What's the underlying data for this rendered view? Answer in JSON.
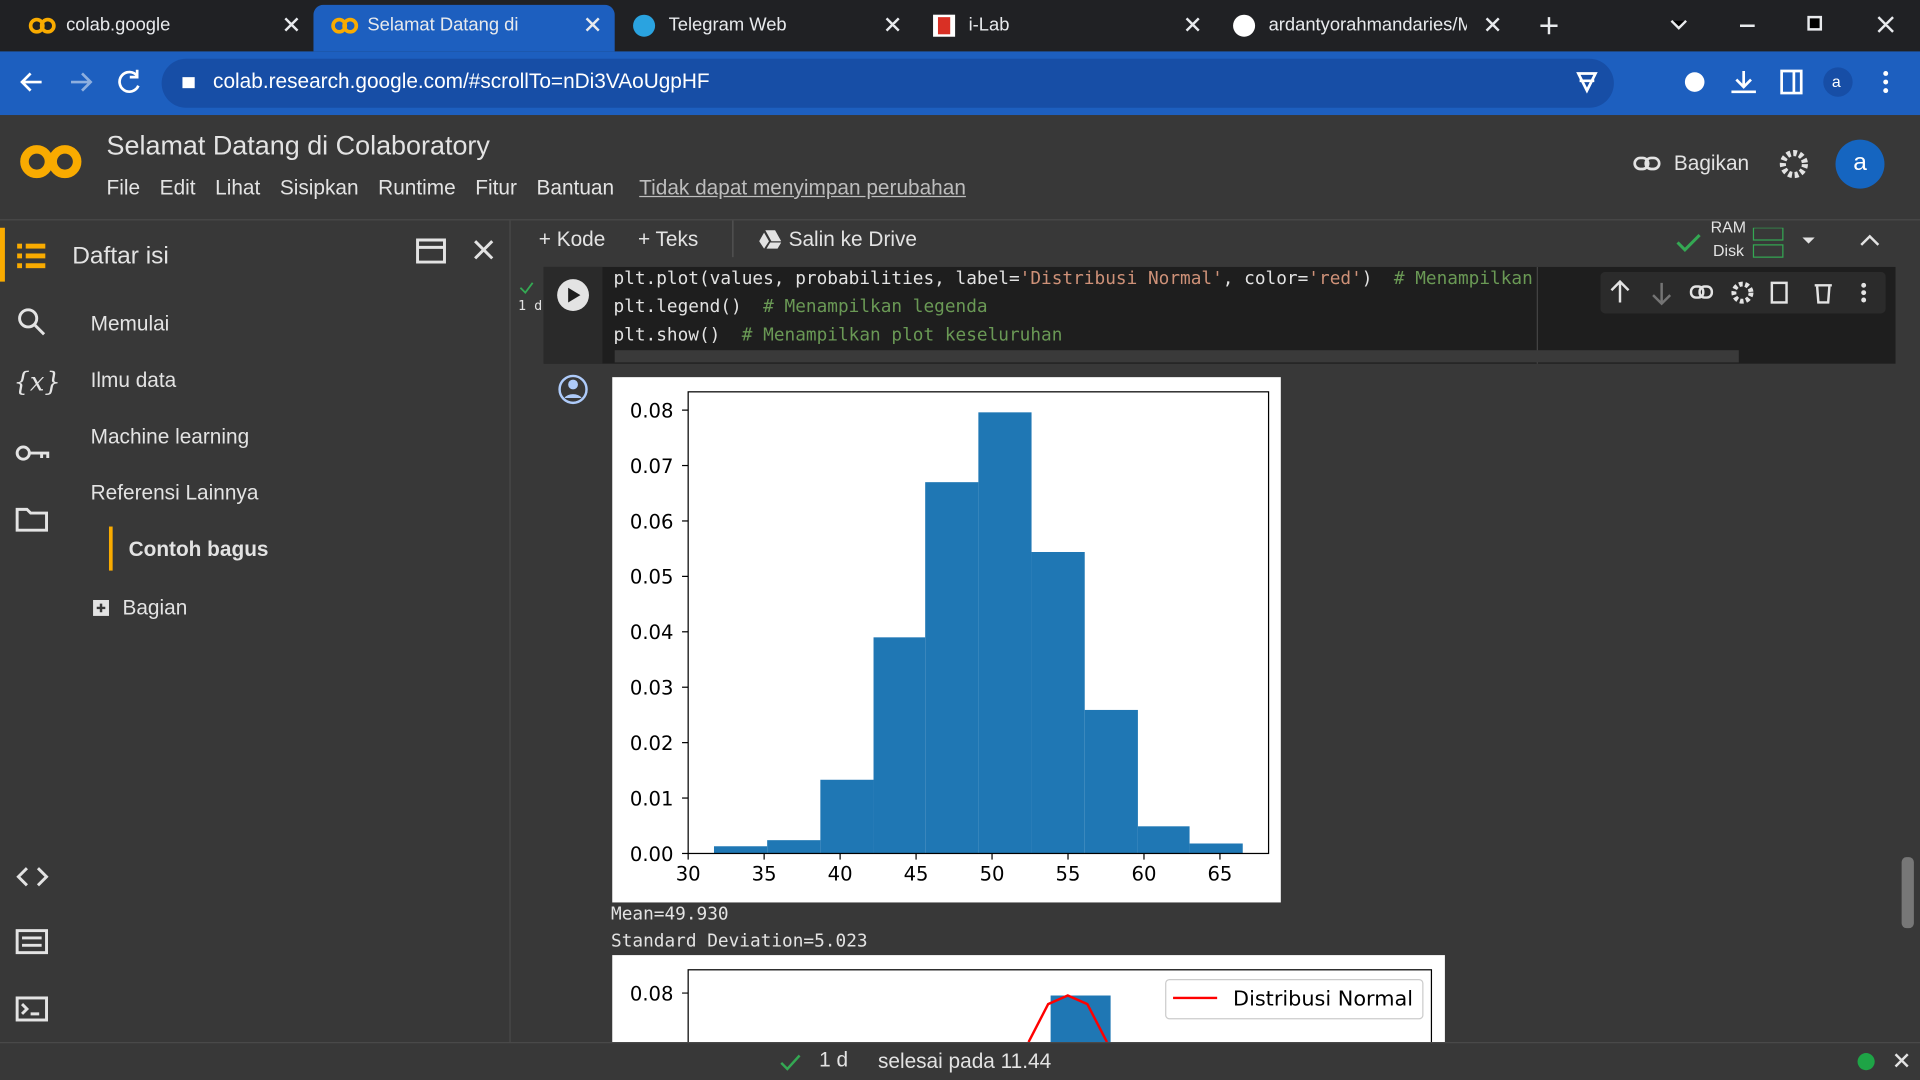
{
  "browser": {
    "tabs": [
      "colab.google",
      "Selamat Datang di Colab",
      "Telegram Web",
      "i-Lab",
      "ardantyorahmandaries/M"
    ],
    "url": "colab.research.google.com/#scrollTo=nDi3VAoUgpHF",
    "profile": "a"
  },
  "header": {
    "title": "Selamat Datang di Colaboratory",
    "menu": [
      "File",
      "Edit",
      "Lihat",
      "Sisipkan",
      "Runtime",
      "Fitur",
      "Bantuan"
    ],
    "warning": "Tidak dapat menyimpan perubahan",
    "share": "Bagikan",
    "avatar": "a"
  },
  "toolbar": {
    "code": "+ Kode",
    "text": "+ Teks",
    "drive": "Salin ke Drive",
    "ram": "RAM",
    "disk": "Disk"
  },
  "sidebar": {
    "title": "Daftar isi",
    "var_icon": "{x}",
    "items": [
      "Memulai",
      "Ilmu data",
      "Machine learning",
      "Referensi Lainnya"
    ],
    "sub_item": "Contoh bagus",
    "section": "Bagian"
  },
  "cell": {
    "exec_time": "1 d",
    "code": [
      [
        "plt.plot(values, probabilities, label=",
        "'Distribusi Normal'",
        ", color=",
        "'red'",
        ")  ",
        "# Menampilkan"
      ],
      [
        "plt.legend()  ",
        "# Menampilkan legenda"
      ],
      [
        "plt.show()  ",
        "# Menampilkan plot keseluruhan"
      ]
    ],
    "output": [
      "Mean=49.930",
      "Standard Deviation=5.023"
    ]
  },
  "chart_data": [
    {
      "type": "histogram",
      "color": "#1f77b4",
      "bins": [
        31.7,
        35.2,
        38.7,
        42.2,
        45.6,
        49.1,
        52.6,
        56.1,
        59.6,
        63.0,
        66.5
      ],
      "values": [
        0.0013,
        0.0024,
        0.0133,
        0.039,
        0.067,
        0.0796,
        0.0544,
        0.0259,
        0.0049,
        0.0018
      ],
      "xlim": [
        30,
        68.2
      ],
      "ylim": [
        0,
        0.0833
      ],
      "xticks": [
        30,
        35,
        40,
        45,
        50,
        55,
        60,
        65
      ],
      "yticks": [
        {
          "value": 0,
          "label": "0.00"
        },
        {
          "value": 0.01,
          "label": "0.01"
        },
        {
          "value": 0.02,
          "label": "0.02"
        },
        {
          "value": 0.03,
          "label": "0.03"
        },
        {
          "value": 0.04,
          "label": "0.04"
        },
        {
          "value": 0.05,
          "label": "0.05"
        },
        {
          "value": 0.06,
          "label": "0.06"
        },
        {
          "value": 0.07,
          "label": "0.07"
        },
        {
          "value": 0.08,
          "label": "0.08"
        }
      ]
    },
    {
      "type": "histogram",
      "yticks": [
        0.08
      ],
      "series": [
        {
          "name": "Distribusi Normal",
          "color": "red"
        }
      ]
    }
  ],
  "status": {
    "time": "1 d",
    "text": "selesai pada 11.44"
  }
}
